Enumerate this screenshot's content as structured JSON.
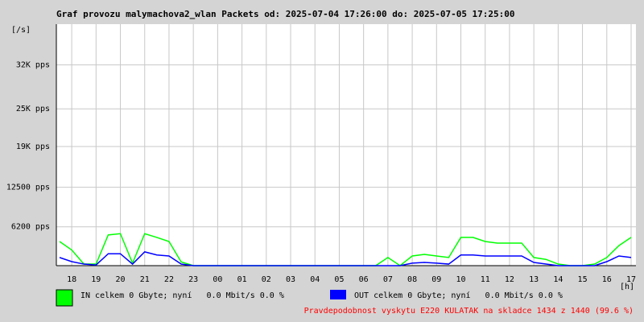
{
  "chart_data": {
    "type": "line",
    "title": "Graf provozu malymachova2_wlan Packets od: 2025-07-04 17:26:00 do: 2025-07-05 17:25:00",
    "y_unit": "[/s]",
    "x_unit": "[h]",
    "categories": [
      null,
      "18",
      null,
      "19",
      null,
      "20",
      null,
      "21",
      null,
      "22",
      null,
      "23",
      null,
      "00",
      null,
      "01",
      null,
      "02",
      null,
      "03",
      null,
      "04",
      null,
      "05",
      null,
      "06",
      null,
      "07",
      null,
      "08",
      null,
      "09",
      null,
      "10",
      null,
      "11",
      null,
      "12",
      null,
      "13",
      null,
      "14",
      null,
      "15",
      null,
      "16",
      null,
      "17"
    ],
    "series": [
      {
        "name": "IN celkem 0 Gbyte; nyní   0.0 Mbit/s 0.0 %",
        "color": "#00ff00",
        "values": [
          3850,
          2500,
          250,
          250,
          4900,
          5100,
          400,
          5100,
          4500,
          3850,
          600,
          0,
          0,
          0,
          0,
          0,
          0,
          0,
          0,
          0,
          0,
          0,
          0,
          0,
          0,
          0,
          0,
          1300,
          0,
          1540,
          1800,
          1540,
          1300,
          4500,
          4500,
          3850,
          3600,
          3600,
          3600,
          1300,
          1000,
          250,
          0,
          0,
          250,
          1300,
          3200,
          4500
        ]
      },
      {
        "name": "OUT celkem 0 Gbyte; nyní   0.0 Mbit/s 0.0 %",
        "color": "#0000ff",
        "values": [
          1300,
          640,
          250,
          100,
          1900,
          1900,
          250,
          2200,
          1700,
          1540,
          250,
          0,
          0,
          0,
          0,
          0,
          0,
          0,
          0,
          0,
          0,
          0,
          0,
          0,
          0,
          0,
          0,
          0,
          0,
          400,
          510,
          400,
          250,
          1700,
          1700,
          1540,
          1540,
          1540,
          1540,
          510,
          250,
          0,
          0,
          0,
          0,
          640,
          1540,
          1300
        ]
      }
    ],
    "ylim": [
      0,
      38500
    ],
    "yticks": [
      {
        "value": 6200,
        "label": "6200 pps"
      },
      {
        "value": 12500,
        "label": "12500 pps"
      },
      {
        "value": 19000,
        "label": "19K pps"
      },
      {
        "value": 25000,
        "label": "25K pps"
      },
      {
        "value": 32000,
        "label": "32K pps"
      }
    ],
    "grid": true,
    "footer": "Pravdepodobnost vyskytu E220 KULATAK na skladce 1434 z 1440 (99.6 %)"
  }
}
